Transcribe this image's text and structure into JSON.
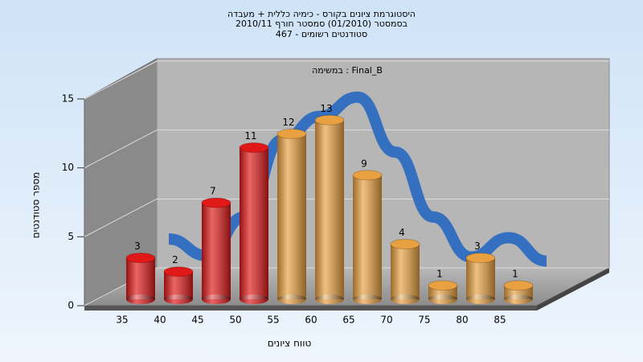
{
  "chart_data": {
    "type": "bar",
    "title": [
      "היסטוגרמת ציונים בקורס - כימיה כללית + מעבדה",
      "בסמסטר  (01/2010)  סמסטר חורף 2010/11",
      "סטודנטים רשומים - 467"
    ],
    "subtitle": "במשימה : Final_B",
    "x_label": "טווח ציונים",
    "y_label": "מספר סטודנטים",
    "categories": [
      "35",
      "40",
      "45",
      "50",
      "55",
      "60",
      "65",
      "70",
      "75",
      "80",
      "85"
    ],
    "values": [
      3,
      2,
      7,
      11,
      12,
      13,
      9,
      4,
      1,
      3,
      1
    ],
    "colors": [
      "#e01818",
      "#e01818",
      "#e01818",
      "#e01818",
      "#e8a040",
      "#e8a040",
      "#e8a040",
      "#e8a040",
      "#e8a040",
      "#e8a040",
      "#e8a040"
    ],
    "curve": {
      "color": "#3570c0",
      "values": [
        3.2,
        2.0,
        4.8,
        10.4,
        12.1,
        13.5,
        9.5,
        4.8,
        1.9,
        3.3,
        1.6
      ]
    },
    "ylim": [
      0,
      15
    ],
    "yticks": [
      0,
      5,
      10,
      15
    ],
    "grid": true
  }
}
